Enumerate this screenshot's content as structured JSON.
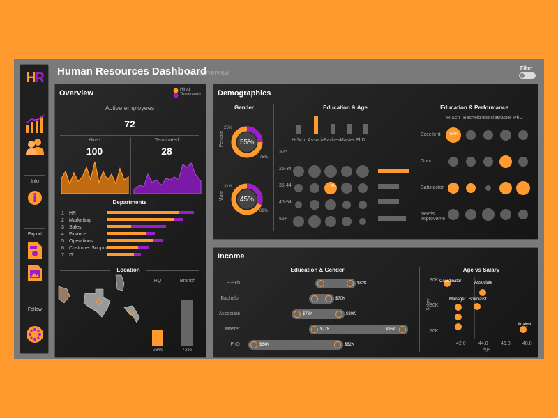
{
  "colors": {
    "accent": "#FF9A2E",
    "purple": "#9B1FC9",
    "panel": "#1e1e1e",
    "circle": "#5e5e5e"
  },
  "app": {
    "logo": "HR",
    "title": "Human Resources Dashboard",
    "subtitle": "| Overview",
    "filter_label": "Filter"
  },
  "sidebar": {
    "items": [
      {
        "icon": "bar-chart-icon"
      },
      {
        "icon": "people-icon"
      },
      {
        "label": "Info",
        "icon": "info-icon"
      },
      {
        "label": "Export",
        "icons": [
          "pdf-export-icon",
          "image-export-icon"
        ]
      },
      {
        "label": "Follow",
        "icon": "follow-icon"
      }
    ]
  },
  "overview": {
    "title": "Overview",
    "legend": {
      "hired": "Hired",
      "terminated": "Terminated"
    },
    "active_label": "Active employees",
    "active_value": "72",
    "hired_label": "Hired",
    "hired_value": "100",
    "terminated_label": "Terminated",
    "terminated_value": "28",
    "departments_title": "Departments",
    "departments": [
      {
        "num": "1",
        "name": "HR",
        "hired": 0.51,
        "terminated": 0.11
      },
      {
        "num": "2",
        "name": "Marketing",
        "hired": 0.48,
        "terminated": 0.06
      },
      {
        "num": "3",
        "name": "Sales",
        "hired": 0.17,
        "terminated": 0.25
      },
      {
        "num": "4",
        "name": "Finance",
        "hired": 0.28,
        "terminated": 0.06
      },
      {
        "num": "5",
        "name": "Operations",
        "hired": 0.33,
        "terminated": 0.07
      },
      {
        "num": "6",
        "name": "Customer Support",
        "hired": 0.22,
        "terminated": 0.08
      },
      {
        "num": "7",
        "name": "IT",
        "hired": 0.19,
        "terminated": 0.05
      }
    ],
    "location_title": "Location",
    "hq_label": "HQ",
    "branch_label": "Branch",
    "hq_pct": "28%",
    "branch_pct": "72%",
    "hq_value": 0.28,
    "branch_value": 0.72
  },
  "demographics": {
    "title": "Demographics",
    "gender_title": "Gender",
    "female_label": "Female",
    "male_label": "Male",
    "female": {
      "center": "55%",
      "outer_left": "25%",
      "outer_right": "75%",
      "value": 0.25
    },
    "male": {
      "center": "45%",
      "outer_left": "31%",
      "outer_right": "69%",
      "value": 0.31
    },
    "edu_age_title": "Education & Age",
    "edu_levels": [
      "H-Sch",
      "Associa",
      "Bachelo",
      "Master",
      "PhD"
    ],
    "age_groups": [
      ">25",
      "25-34",
      "35-44",
      "45-54",
      "55+"
    ],
    "bubble_highlight": "9%",
    "edu_perf_title": "Education & Performance",
    "perf_levels": [
      "Excellent",
      "Good",
      "Satisfactor",
      "Needs Improveme"
    ],
    "edu_perf_cols": [
      "H-Sch",
      "Bachelo",
      "Associat",
      "Master",
      "PhD"
    ],
    "perf_highlight": "50%"
  },
  "income": {
    "title": "Income",
    "edu_gender_title": "Education & Gender",
    "rows": [
      {
        "label": "H-Sch",
        "left": "",
        "right": "$82K"
      },
      {
        "label": "Bachelor",
        "left": "",
        "right": "$70K"
      },
      {
        "label": "Associate",
        "left": "$73K",
        "right": "$80K"
      },
      {
        "label": "Master",
        "left": "$77K",
        "right": "$96K"
      },
      {
        "label": "PhD",
        "left": "$64K",
        "right": "$82K"
      }
    ],
    "age_salary_title": "Age vs Salary",
    "y_ticks": [
      "90K",
      "80K",
      "70K"
    ],
    "x_ticks": [
      "42.0",
      "44.0",
      "46.0",
      "48.0"
    ],
    "ylabel": "Salary",
    "xlabel": "Age",
    "points": [
      "Coordinator",
      "Associate",
      "Manager",
      "Specialist",
      "Analyst"
    ]
  }
}
